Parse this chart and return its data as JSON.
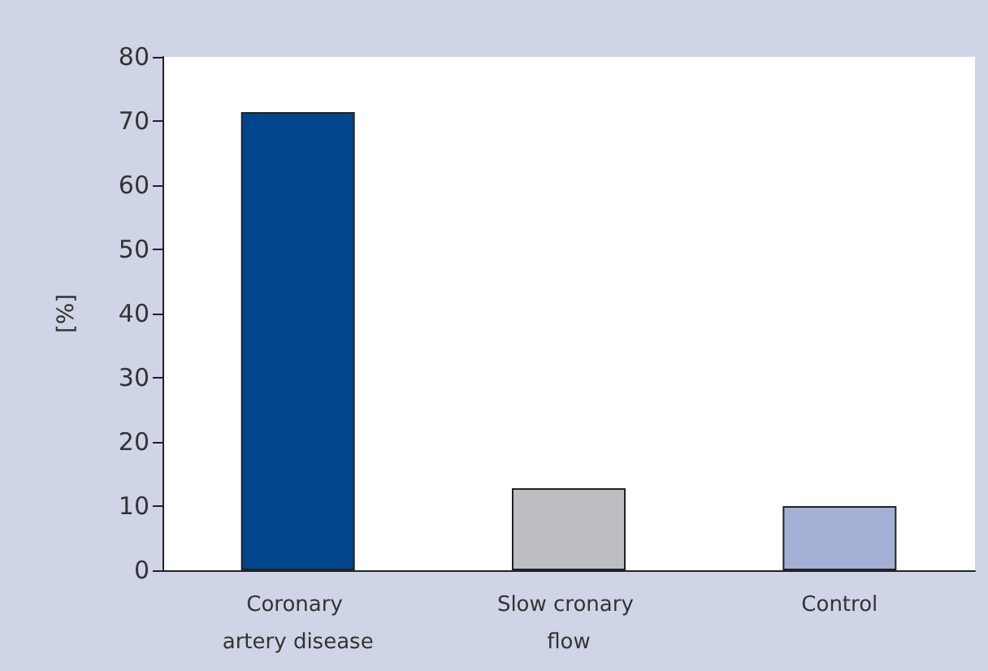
{
  "chart_data": {
    "type": "bar",
    "ylabel": "[%]",
    "categories": [
      "Coronary artery disease",
      "Slow cronary flow",
      "Control"
    ],
    "values": [
      71.4,
      12.8,
      10
    ],
    "colors": [
      "#00468c",
      "#bdbec2",
      "#a3afd4"
    ],
    "ylim": [
      0,
      80
    ],
    "yticks": [
      0,
      10,
      20,
      30,
      40,
      50,
      60,
      70,
      80
    ],
    "grid": false
  }
}
